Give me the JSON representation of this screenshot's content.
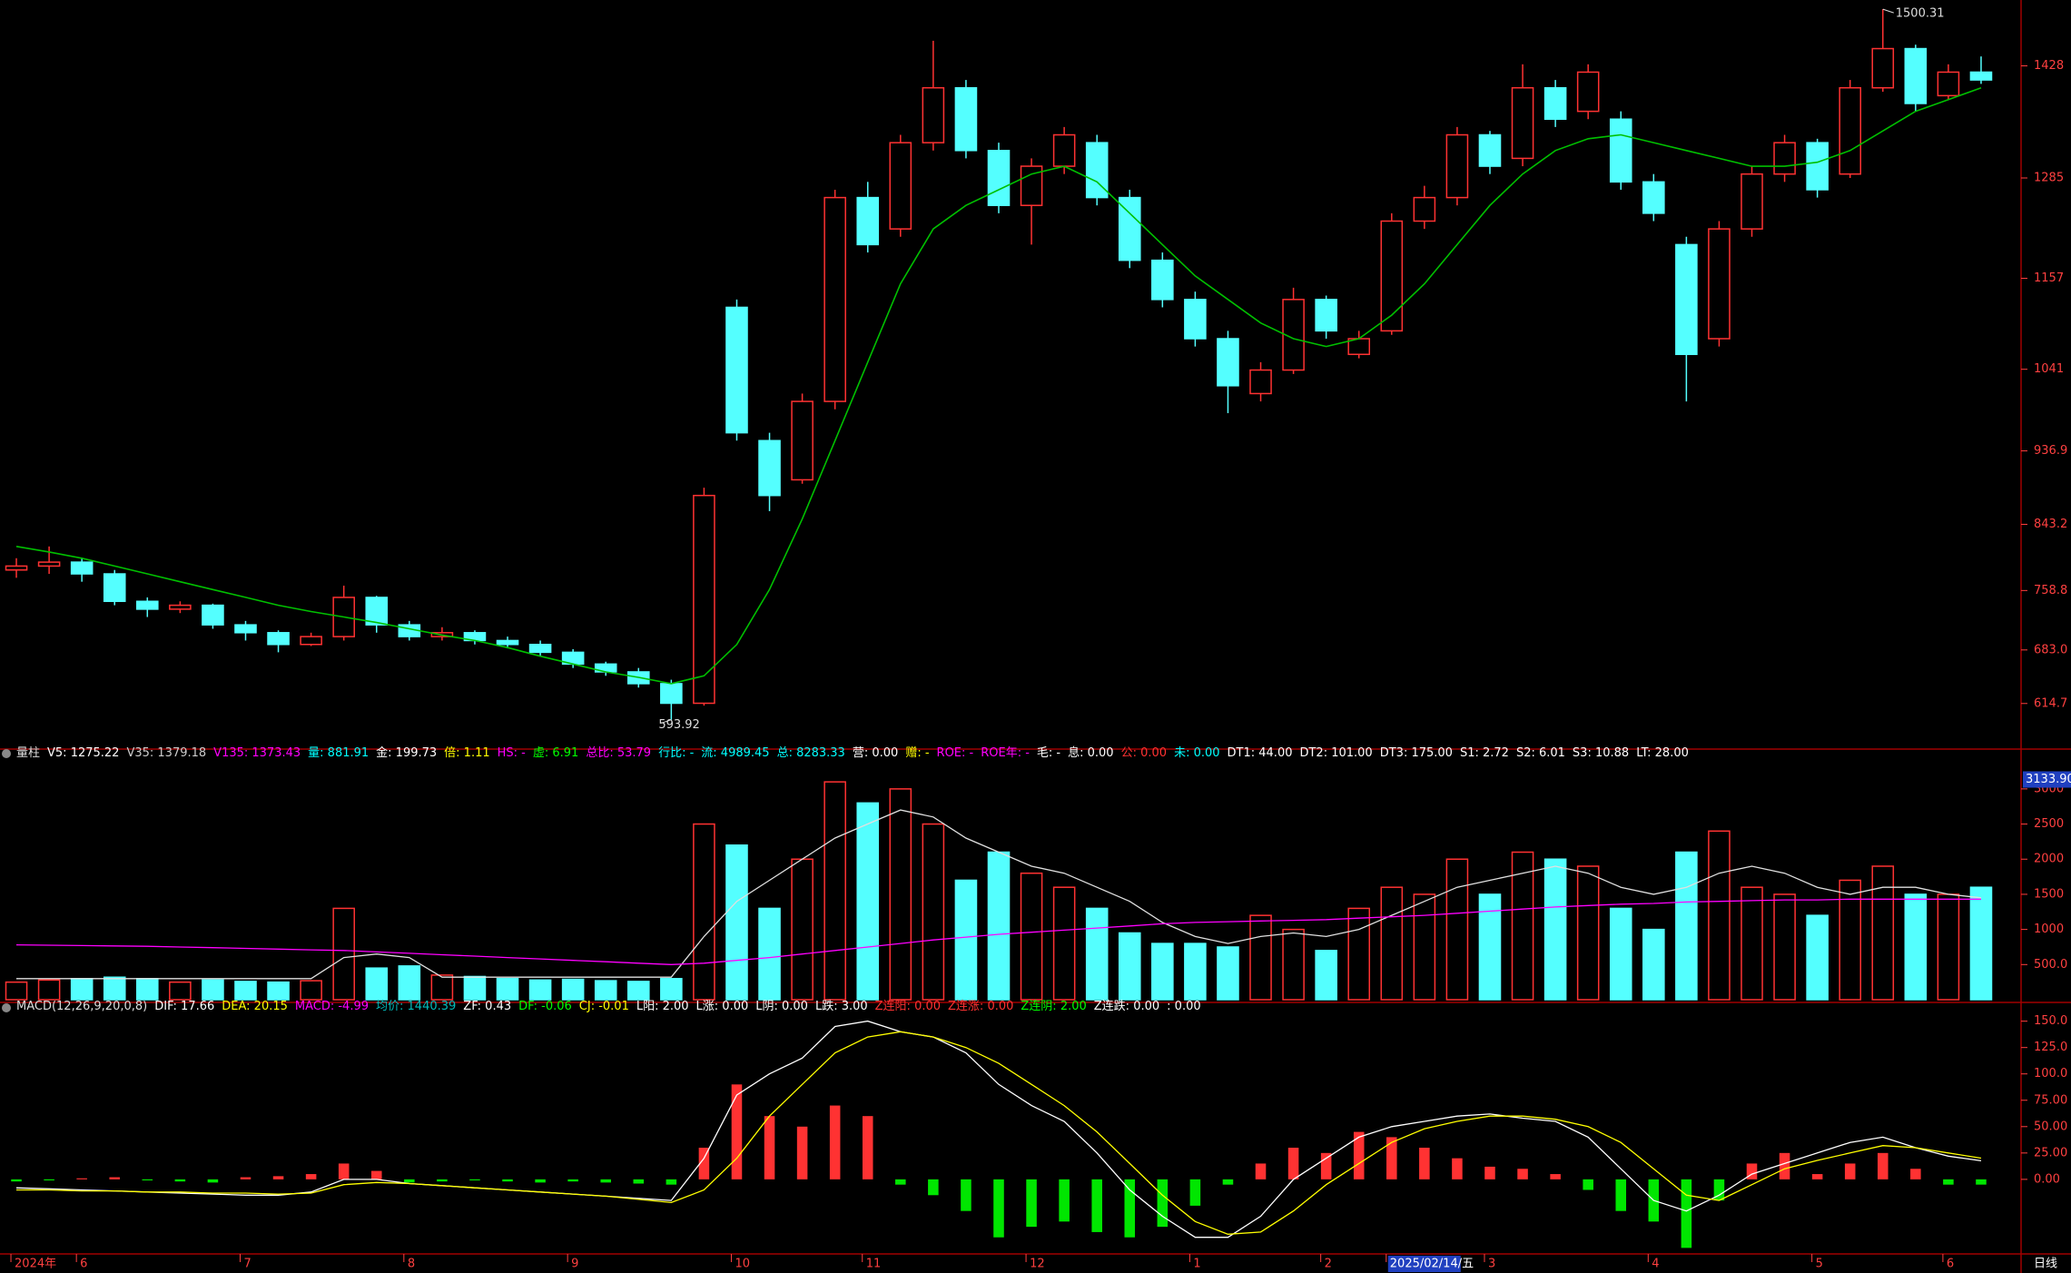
{
  "chart_data": [
    {
      "type": "candlestick",
      "ylim": [
        560,
        1512
      ],
      "yticks": [
        614.7,
        {
          "value": 683,
          "label": "683.0"
        },
        758.8,
        843.2,
        936.9,
        1041,
        1157,
        1285,
        1428
      ],
      "up_color": "#ff3232",
      "down_color": "#54ffff",
      "categories": [
        "2024年",
        null,
        "6",
        null,
        null,
        null,
        null,
        "7",
        null,
        null,
        null,
        null,
        "8",
        null,
        null,
        null,
        null,
        "9",
        null,
        null,
        null,
        null,
        "10",
        null,
        null,
        null,
        "11",
        null,
        null,
        null,
        null,
        "12",
        null,
        null,
        null,
        null,
        "1",
        null,
        null,
        null,
        "2",
        null,
        "2025/02/14/五",
        null,
        null,
        "3",
        null,
        null,
        null,
        null,
        "4",
        null,
        null,
        null,
        null,
        "5",
        null,
        null,
        null,
        "6",
        null
      ],
      "period": "日线",
      "ohlc": [
        [
          785,
          800,
          775,
          790
        ],
        [
          790,
          815,
          780,
          795
        ],
        [
          795,
          800,
          770,
          780
        ],
        [
          780,
          785,
          740,
          745
        ],
        [
          745,
          750,
          725,
          735
        ],
        [
          735,
          745,
          730,
          740
        ],
        [
          740,
          742,
          710,
          715
        ],
        [
          715,
          720,
          695,
          705
        ],
        [
          705,
          708,
          680,
          690
        ],
        [
          690,
          705,
          688,
          700
        ],
        [
          700,
          765,
          695,
          750
        ],
        [
          750,
          752,
          705,
          715
        ],
        [
          715,
          720,
          695,
          700
        ],
        [
          700,
          712,
          695,
          705
        ],
        [
          705,
          708,
          690,
          695
        ],
        [
          695,
          700,
          685,
          690
        ],
        [
          690,
          695,
          675,
          680
        ],
        [
          680,
          684,
          660,
          665
        ],
        [
          665,
          668,
          650,
          655
        ],
        [
          655,
          660,
          635,
          640
        ],
        [
          640,
          645,
          593.92,
          615
        ],
        [
          615,
          890,
          612,
          880
        ],
        [
          1120,
          1130,
          950,
          960
        ],
        [
          950,
          960,
          860,
          880
        ],
        [
          900,
          1010,
          895,
          1000
        ],
        [
          1000,
          1270,
          990,
          1260
        ],
        [
          1260,
          1280,
          1190,
          1200
        ],
        [
          1220,
          1340,
          1210,
          1330
        ],
        [
          1330,
          1460,
          1320,
          1400
        ],
        [
          1400,
          1410,
          1310,
          1320
        ],
        [
          1320,
          1330,
          1240,
          1250
        ],
        [
          1250,
          1310,
          1200,
          1300
        ],
        [
          1300,
          1350,
          1290,
          1340
        ],
        [
          1330,
          1340,
          1250,
          1260
        ],
        [
          1260,
          1270,
          1170,
          1180
        ],
        [
          1180,
          1190,
          1120,
          1130
        ],
        [
          1130,
          1140,
          1070,
          1080
        ],
        [
          1080,
          1090,
          985,
          1020
        ],
        [
          1010,
          1050,
          1000,
          1040
        ],
        [
          1040,
          1145,
          1035,
          1130
        ],
        [
          1130,
          1135,
          1080,
          1090
        ],
        [
          1060,
          1090,
          1055,
          1080
        ],
        [
          1090,
          1240,
          1085,
          1230
        ],
        [
          1230,
          1275,
          1220,
          1260
        ],
        [
          1260,
          1350,
          1250,
          1340
        ],
        [
          1340,
          1345,
          1290,
          1300
        ],
        [
          1310,
          1430,
          1300,
          1400
        ],
        [
          1400,
          1410,
          1350,
          1360
        ],
        [
          1370,
          1430,
          1360,
          1420
        ],
        [
          1360,
          1370,
          1270,
          1280
        ],
        [
          1280,
          1290,
          1230,
          1240
        ],
        [
          1200,
          1210,
          1000,
          1060
        ],
        [
          1080,
          1230,
          1070,
          1220
        ],
        [
          1220,
          1300,
          1210,
          1290
        ],
        [
          1290,
          1340,
          1280,
          1330
        ],
        [
          1330,
          1335,
          1260,
          1270
        ],
        [
          1290,
          1410,
          1285,
          1400
        ],
        [
          1400,
          1500.31,
          1395,
          1450
        ],
        [
          1450,
          1455,
          1370,
          1380
        ],
        [
          1390,
          1430,
          1385,
          1420
        ],
        [
          1420,
          1440,
          1405,
          1410
        ]
      ],
      "series": [
        {
          "color": "#00c000",
          "values": [
            815,
            808,
            800,
            790,
            780,
            770,
            760,
            750,
            740,
            732,
            725,
            718,
            710,
            702,
            695,
            686,
            675,
            665,
            655,
            648,
            640,
            650,
            690,
            760,
            850,
            950,
            1050,
            1150,
            1220,
            1250,
            1270,
            1290,
            1300,
            1280,
            1240,
            1200,
            1160,
            1130,
            1100,
            1080,
            1070,
            1080,
            1110,
            1150,
            1200,
            1250,
            1290,
            1320,
            1335,
            1340,
            1330,
            1320,
            1310,
            1300,
            1300,
            1305,
            1320,
            1345,
            1370,
            1385,
            1400
          ]
        }
      ]
    },
    {
      "type": "bar",
      "header": [
        {
          "text": "量柱",
          "color": "#dddddd"
        },
        {
          "text": "V5: 1275.22",
          "color": "#ffffff"
        },
        {
          "text": "V35: 1379.18",
          "color": "#cccccc"
        },
        {
          "text": "V135: 1373.43",
          "color": "#ff00ff"
        },
        {
          "text": "量: 881.91",
          "color": "#00ffff"
        },
        {
          "text": "金: 199.73",
          "color": "#ffffff"
        },
        {
          "text": "倍: 1.11",
          "color": "#ffff00"
        },
        {
          "text": "HS: -",
          "color": "#ff00ff"
        },
        {
          "text": "虚: 6.91",
          "color": "#00ff00"
        },
        {
          "text": "总比: 53.79",
          "color": "#ff00ff"
        },
        {
          "text": "行比: -",
          "color": "#00ffff"
        },
        {
          "text": "流: 4989.45",
          "color": "#00ffff"
        },
        {
          "text": "总: 8283.33",
          "color": "#00ffff"
        },
        {
          "text": "营: 0.00",
          "color": "#ffffff"
        },
        {
          "text": "赠: -",
          "color": "#ffff00"
        },
        {
          "text": "ROE: -",
          "color": "#ff00ff"
        },
        {
          "text": "ROE年: -",
          "color": "#ff00ff"
        },
        {
          "text": "毛: -",
          "color": "#ffffff"
        },
        {
          "text": "息: 0.00",
          "color": "#ffffff"
        },
        {
          "text": "公: 0.00",
          "color": "#ff3232"
        },
        {
          "text": "未: 0.00",
          "color": "#00ffff"
        },
        {
          "text": "DT1: 44.00",
          "color": "#ffffff"
        },
        {
          "text": "DT2: 101.00",
          "color": "#ffffff"
        },
        {
          "text": "DT3: 175.00",
          "color": "#ffffff"
        },
        {
          "text": "S1: 2.72",
          "color": "#ffffff"
        },
        {
          "text": "S2: 6.01",
          "color": "#ffffff"
        },
        {
          "text": "S3: 10.88",
          "color": "#ffffff"
        },
        {
          "text": "LT: 28.00",
          "color": "#ffffff"
        }
      ],
      "ylim": [
        0,
        3360
      ],
      "yticks": [
        {
          "value": 500,
          "label": "500.0"
        },
        1000,
        1500,
        2000,
        2500,
        3000
      ],
      "highlight_tick": {
        "value": 3133.9,
        "label": "3133.90"
      },
      "values": [
        250,
        280,
        300,
        320,
        300,
        250,
        280,
        260,
        250,
        270,
        1300,
        450,
        480,
        350,
        330,
        300,
        280,
        290,
        270,
        260,
        300,
        2500,
        2200,
        1300,
        2000,
        3100,
        2800,
        3000,
        2500,
        1700,
        2100,
        1800,
        1600,
        1300,
        950,
        800,
        800,
        750,
        1200,
        1000,
        700,
        1300,
        1600,
        1500,
        2000,
        1500,
        2100,
        2000,
        1900,
        1300,
        1000,
        2100,
        2400,
        1600,
        1500,
        1200,
        1700,
        1900,
        1500,
        1500,
        1600
      ],
      "series": [
        {
          "color": "#e0e0e0",
          "values": [
            300,
            300,
            300,
            300,
            300,
            300,
            300,
            300,
            300,
            300,
            600,
            650,
            600,
            320,
            320,
            320,
            320,
            320,
            320,
            320,
            320,
            900,
            1400,
            1700,
            2000,
            2300,
            2500,
            2700,
            2600,
            2300,
            2100,
            1900,
            1800,
            1600,
            1400,
            1100,
            900,
            800,
            900,
            950,
            900,
            1000,
            1200,
            1400,
            1600,
            1700,
            1800,
            1900,
            1800,
            1600,
            1500,
            1600,
            1800,
            1900,
            1800,
            1600,
            1500,
            1600,
            1600,
            1500,
            1450
          ]
        },
        {
          "color": "#ff00ff",
          "values": [
            780,
            775,
            770,
            765,
            760,
            750,
            740,
            730,
            720,
            710,
            700,
            680,
            660,
            640,
            620,
            600,
            580,
            560,
            540,
            520,
            500,
            520,
            560,
            600,
            650,
            700,
            750,
            800,
            850,
            890,
            930,
            960,
            990,
            1020,
            1050,
            1080,
            1100,
            1110,
            1120,
            1130,
            1140,
            1160,
            1180,
            1200,
            1230,
            1260,
            1290,
            1320,
            1340,
            1360,
            1370,
            1390,
            1400,
            1410,
            1420,
            1420,
            1430,
            1430,
            1430,
            1430,
            1430
          ]
        }
      ]
    },
    {
      "type": "bar",
      "header": [
        {
          "text": "MACD(12,26,9,20,0,8)",
          "color": "#dddddd"
        },
        {
          "text": "DIF: 17.66",
          "color": "#ffffff"
        },
        {
          "text": "DEA: 20.15",
          "color": "#ffff00"
        },
        {
          "text": "MACD: -4.99",
          "color": "#ff00ff"
        },
        {
          "text": "均价: 1440.39",
          "color": "#00bbbb"
        },
        {
          "text": "ZF: 0.43",
          "color": "#ffffff"
        },
        {
          "text": "DF: -0.06",
          "color": "#00ff00"
        },
        {
          "text": "CJ: -0.01",
          "color": "#ffff00"
        },
        {
          "text": "L阳: 2.00",
          "color": "#ffffff"
        },
        {
          "text": "L涨: 0.00",
          "color": "#ffffff"
        },
        {
          "text": "L阴: 0.00",
          "color": "#ffffff"
        },
        {
          "text": "L跌: 3.00",
          "color": "#ffffff"
        },
        {
          "text": "Z连阳: 0.00",
          "color": "#ff3232"
        },
        {
          "text": "Z连涨: 0.00",
          "color": "#ff3232"
        },
        {
          "text": "Z连阴: 2.00",
          "color": "#00ff00"
        },
        {
          "text": "Z连跌: 0.00",
          "color": "#ffffff"
        },
        {
          "text": ": 0.00",
          "color": "#ffffff"
        }
      ],
      "ylim": [
        -69,
        154
      ],
      "yticks": [
        {
          "value": 0,
          "label": "0.00"
        },
        {
          "value": 25,
          "label": "25.00"
        },
        {
          "value": 50,
          "label": "50.00"
        },
        {
          "value": 75,
          "label": "75.00"
        },
        {
          "value": 100,
          "label": "100.0"
        },
        {
          "value": 125,
          "label": "125.0"
        },
        {
          "value": 150,
          "label": "150.0"
        }
      ],
      "pos_color": "#ff3232",
      "neg_color": "#00e600",
      "values": [
        -2,
        -1,
        1,
        2,
        -1,
        -2,
        -3,
        2,
        3,
        5,
        15,
        8,
        -3,
        -2,
        -1,
        -2,
        -3,
        -2,
        -3,
        -4,
        -5,
        30,
        90,
        60,
        50,
        70,
        60,
        -5,
        -15,
        -30,
        -55,
        -45,
        -40,
        -50,
        -55,
        -45,
        -25,
        -5,
        15,
        30,
        25,
        45,
        40,
        30,
        20,
        12,
        10,
        5,
        -10,
        -30,
        -40,
        -65,
        -20,
        15,
        25,
        5,
        15,
        25,
        10,
        -5,
        -4.99
      ],
      "series": [
        {
          "name": "DIF",
          "color": "#ffffff",
          "values": [
            -8,
            -9,
            -10,
            -11,
            -12,
            -13,
            -14,
            -15,
            -15,
            -12,
            0,
            0,
            -4,
            -6,
            -8,
            -10,
            -12,
            -14,
            -16,
            -18,
            -20,
            20,
            80,
            100,
            115,
            145,
            150,
            140,
            135,
            120,
            90,
            70,
            55,
            25,
            -10,
            -35,
            -55,
            -55,
            -35,
            0,
            20,
            40,
            50,
            55,
            60,
            62,
            58,
            55,
            40,
            10,
            -20,
            -30,
            -15,
            5,
            15,
            25,
            35,
            40,
            30,
            22,
            17.66
          ]
        },
        {
          "name": "DEA",
          "color": "#ffff00",
          "values": [
            -10,
            -10,
            -11,
            -11,
            -12,
            -12,
            -13,
            -13,
            -14,
            -13,
            -5,
            -3,
            -4,
            -6,
            -8,
            -10,
            -12,
            -14,
            -16,
            -19,
            -22,
            -10,
            20,
            60,
            90,
            120,
            135,
            140,
            135,
            125,
            110,
            90,
            70,
            45,
            15,
            -15,
            -40,
            -52,
            -50,
            -30,
            -5,
            15,
            35,
            48,
            55,
            60,
            60,
            57,
            50,
            35,
            10,
            -15,
            -20,
            -5,
            10,
            18,
            25,
            32,
            30,
            25,
            20.15
          ]
        }
      ]
    }
  ]
}
